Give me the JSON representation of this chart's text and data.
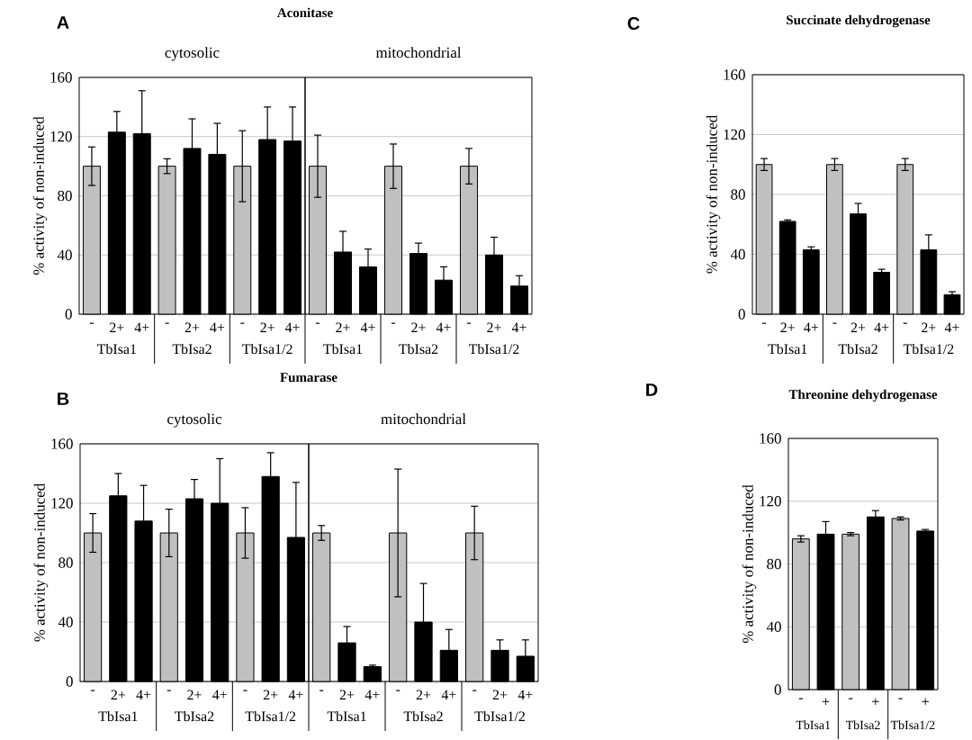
{
  "chart_data": [
    {
      "type": "bar",
      "title": "Aconitase",
      "subtitle": "cytosolic",
      "ylabel": "% activity of non-induced",
      "categories": [
        "-",
        "2+",
        "4+",
        "-",
        "2+",
        "4+",
        "-",
        "2+",
        "4+"
      ],
      "values": [
        100,
        123,
        122,
        100,
        112,
        108,
        100,
        118,
        117
      ],
      "errors": [
        13,
        14,
        29,
        5,
        20,
        21,
        24,
        22,
        23
      ],
      "colors": [
        "#c0c0c0",
        "#000000",
        "#000000",
        "#c0c0c0",
        "#000000",
        "#000000",
        "#c0c0c0",
        "#000000",
        "#000000"
      ],
      "ylim": [
        0,
        160
      ],
      "yticks": [
        0,
        40,
        80,
        120,
        160
      ],
      "grid": "y",
      "annotations": [
        "A",
        "TbIsa1",
        "TbIsa2",
        "TbIsa1/2"
      ]
    },
    {
      "type": "bar",
      "subtitle": "mitochondrial",
      "categories": [
        "-",
        "2+",
        "4+",
        "-",
        "2+",
        "4+",
        "-",
        "2+",
        "4+"
      ],
      "values": [
        100,
        42,
        32,
        100,
        41,
        23,
        100,
        40,
        19
      ],
      "errors": [
        21,
        14,
        12,
        15,
        7,
        9,
        12,
        12,
        7
      ],
      "colors": [
        "#c0c0c0",
        "#000000",
        "#000000",
        "#c0c0c0",
        "#000000",
        "#000000",
        "#c0c0c0",
        "#000000",
        "#000000"
      ],
      "ylim": [
        0,
        160
      ],
      "yticks": [
        0,
        40,
        80,
        120,
        160
      ],
      "grid": "y",
      "tick_labels": "x",
      "annotations": [
        "TbIsa1",
        "TbIsa2",
        "TbIsa1/2"
      ]
    },
    {
      "type": "bar",
      "title": "Fumarase",
      "subtitle": "cytosolic",
      "ylabel": "% activity of non-induced",
      "categories": [
        "-",
        "2+",
        "4+",
        "-",
        "2+",
        "4+",
        "-",
        "2+",
        "4+"
      ],
      "values": [
        100,
        125,
        108,
        100,
        123,
        120,
        100,
        138,
        97
      ],
      "errors": [
        13,
        15,
        24,
        16,
        13,
        30,
        17,
        16,
        37
      ],
      "colors": [
        "#c0c0c0",
        "#000000",
        "#000000",
        "#c0c0c0",
        "#000000",
        "#000000",
        "#c0c0c0",
        "#000000",
        "#000000"
      ],
      "ylim": [
        0,
        160
      ],
      "yticks": [
        0,
        40,
        80,
        120,
        160
      ],
      "grid": "y",
      "annotations": [
        "B",
        "TbIsa1",
        "TbIsa2",
        "TbIsa1/2"
      ]
    },
    {
      "type": "bar",
      "subtitle": "mitochondrial",
      "categories": [
        "-",
        "2+",
        "4+",
        "-",
        "2+",
        "4+",
        "-",
        "2+",
        "4+"
      ],
      "values": [
        100,
        26,
        10,
        100,
        40,
        21,
        100,
        21,
        17
      ],
      "errors": [
        5,
        11,
        1,
        43,
        26,
        14,
        18,
        7,
        11
      ],
      "colors": [
        "#c0c0c0",
        "#000000",
        "#000000",
        "#c0c0c0",
        "#000000",
        "#000000",
        "#c0c0c0",
        "#000000",
        "#000000"
      ],
      "ylim": [
        0,
        160
      ],
      "yticks": [
        0,
        40,
        80,
        120,
        160
      ],
      "grid": "y",
      "tick_labels": "x",
      "annotations": [
        "TbIsa1",
        "TbIsa2",
        "TbIsa1/2"
      ]
    },
    {
      "type": "bar",
      "title": "Succinate dehydrogenase",
      "ylabel": "% activity of non-induced",
      "categories": [
        "-",
        "2+",
        "4+",
        "-",
        "2+",
        "4+",
        "-",
        "2+",
        "4+"
      ],
      "values": [
        100,
        62,
        43,
        100,
        67,
        28,
        100,
        43,
        13
      ],
      "errors": [
        4,
        1,
        2,
        4,
        7,
        2,
        4,
        10,
        2
      ],
      "colors": [
        "#c0c0c0",
        "#000000",
        "#000000",
        "#c0c0c0",
        "#000000",
        "#000000",
        "#c0c0c0",
        "#000000",
        "#000000"
      ],
      "ylim": [
        0,
        160
      ],
      "yticks": [
        0,
        40,
        80,
        120,
        160
      ],
      "grid": "y",
      "annotations": [
        "C",
        "TbIsa1",
        "TbIsa2",
        "TbIsa1/2"
      ]
    },
    {
      "type": "bar",
      "title": "Threonine dehydrogenase",
      "ylabel": "% activity of non-induced",
      "categories": [
        "-",
        "+",
        "-",
        "+",
        "-",
        "+"
      ],
      "values": [
        96,
        99,
        99,
        110,
        109,
        101
      ],
      "errors": [
        2,
        8,
        1,
        4,
        1,
        1
      ],
      "colors": [
        "#c0c0c0",
        "#000000",
        "#c0c0c0",
        "#000000",
        "#c0c0c0",
        "#000000"
      ],
      "ylim": [
        0,
        160
      ],
      "yticks": [
        0,
        40,
        80,
        120,
        160
      ],
      "grid": "y",
      "annotations": [
        "D",
        "TbIsa1",
        "TbIsa2",
        "TbIsa1/2"
      ]
    }
  ]
}
